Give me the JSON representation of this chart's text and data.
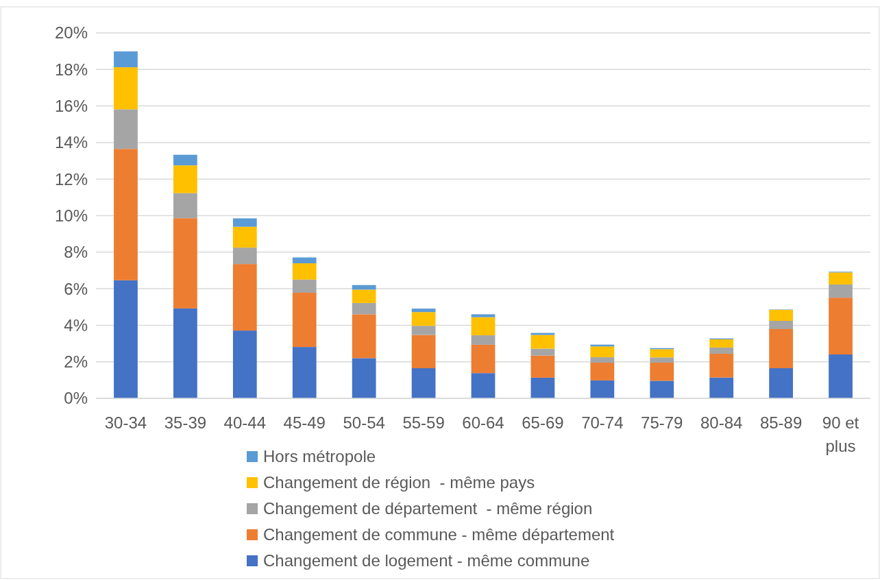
{
  "chart_data": {
    "type": "bar",
    "stacked": true,
    "grid": "y",
    "legend": "bottom",
    "categories": [
      "30-34",
      "35-39",
      "40-44",
      "45-49",
      "50-54",
      "55-59",
      "60-64",
      "65-69",
      "70-74",
      "75-79",
      "80-84",
      "85-89",
      "90 et plus"
    ],
    "series": [
      {
        "name": "Changement de logement - même commune",
        "color": "#4472c4",
        "values": [
          6.46,
          4.92,
          3.71,
          2.81,
          2.2,
          1.65,
          1.38,
          1.13,
          0.98,
          0.96,
          1.14,
          1.65,
          2.4
        ]
      },
      {
        "name": "Changement de commune - même département",
        "color": "#ed7d31",
        "values": [
          7.19,
          4.94,
          3.64,
          2.97,
          2.4,
          1.82,
          1.55,
          1.21,
          0.97,
          0.99,
          1.3,
          2.14,
          3.11
        ]
      },
      {
        "name": "Changement de département  - même région",
        "color": "#a5a5a5",
        "values": [
          2.17,
          1.37,
          0.9,
          0.72,
          0.62,
          0.5,
          0.52,
          0.38,
          0.3,
          0.29,
          0.34,
          0.45,
          0.72
        ]
      },
      {
        "name": "Changement de région  - même pays",
        "color": "#ffc000",
        "values": [
          2.3,
          1.52,
          1.14,
          0.89,
          0.73,
          0.75,
          0.99,
          0.75,
          0.59,
          0.45,
          0.45,
          0.6,
          0.66
        ]
      },
      {
        "name": "Hors métropole",
        "color": "#5b9bd5",
        "values": [
          0.87,
          0.58,
          0.46,
          0.32,
          0.25,
          0.19,
          0.16,
          0.11,
          0.1,
          0.06,
          0.05,
          0.02,
          0.04
        ]
      }
    ],
    "ylim": [
      0,
      20
    ],
    "yticks": [
      {
        "value": 0,
        "label": "0%"
      },
      {
        "value": 2,
        "label": "2%"
      },
      {
        "value": 4,
        "label": "4%"
      },
      {
        "value": 6,
        "label": "6%"
      },
      {
        "value": 8,
        "label": "8%"
      },
      {
        "value": 10,
        "label": "10%"
      },
      {
        "value": 12,
        "label": "12%"
      },
      {
        "value": 14,
        "label": "14%"
      },
      {
        "value": 16,
        "label": "16%"
      },
      {
        "value": 18,
        "label": "18%"
      },
      {
        "value": 20,
        "label": "20%"
      }
    ]
  }
}
